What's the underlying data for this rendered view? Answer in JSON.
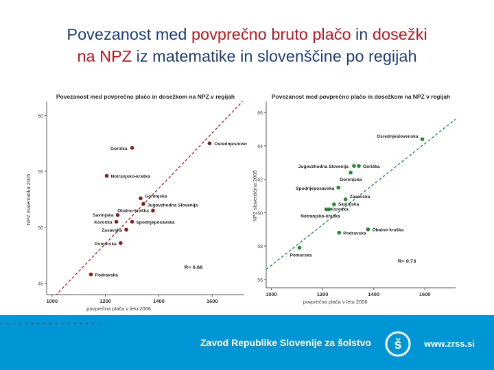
{
  "slide": {
    "title_line1_a": "Povezanost med ",
    "title_line1_b": "povprečno bruto  plačo",
    "title_line1_c": " in ",
    "title_line1_d": "dosežki",
    "title_line2_a": "na NPZ",
    "title_line2_b": " iz matematike in slovenščine po regijah"
  },
  "footer": {
    "dots": ". . . . . . . . . . . . . . . . .",
    "org": "Zavod Republike Slovenije za šolstvo",
    "url": "www.zrss.si",
    "logo": "zrss-logo-icon",
    "bg_color": "#0096d6"
  },
  "chart_data": [
    {
      "type": "scatter",
      "title": "Povezanost med povprečno plačo in dosežkom na NPZ v regijah",
      "xlabel": "povprečna plača v letu 2006",
      "ylabel": "NPZ matematika 2005",
      "xlim": [
        980,
        1720
      ],
      "ylim": [
        44,
        61
      ],
      "xticks": [
        1000,
        1200,
        1400,
        1600
      ],
      "yticks": [
        45,
        50,
        55,
        60
      ],
      "point_color": "#8b1a1a",
      "trend_color": "#c4161c",
      "trend": {
        "x": [
          1000,
          1720
        ],
        "y": [
          43.6,
          61.4
        ]
      },
      "annotation": "R= 0.68",
      "points": [
        {
          "label": "Osrednjeslovenska",
          "x": 1590,
          "y": 57.5
        },
        {
          "label": "Goriška",
          "x": 1300,
          "y": 57.1
        },
        {
          "label": "Notranjsko-kraška",
          "x": 1205,
          "y": 54.6
        },
        {
          "label": "Gorenjska",
          "x": 1332,
          "y": 52.6
        },
        {
          "label": "Jugovzhodna Slovenija",
          "x": 1342,
          "y": 52.1
        },
        {
          "label": "Obalno-kraška",
          "x": 1378,
          "y": 51.5
        },
        {
          "label": "Savinjska",
          "x": 1246,
          "y": 51.1
        },
        {
          "label": "Koroška",
          "x": 1241,
          "y": 50.5
        },
        {
          "label": "Spodnjeposavska",
          "x": 1300,
          "y": 50.5
        },
        {
          "label": "Zasavska",
          "x": 1278,
          "y": 49.8
        },
        {
          "label": "Pomurska",
          "x": 1257,
          "y": 48.6
        },
        {
          "label": "Podravska",
          "x": 1146,
          "y": 45.8
        }
      ]
    },
    {
      "type": "scatter",
      "title": "Povezanost med povprečno plačo in dosežkom na NPZ v regijah",
      "xlabel": "povprečna plača v letu 2006",
      "ylabel": "NPZ slovenščina 2005",
      "xlim": [
        980,
        1720
      ],
      "ylim": [
        55.5,
        66.5
      ],
      "xticks": [
        1000,
        1200,
        1400,
        1600
      ],
      "yticks": [
        56,
        58,
        60,
        62,
        64,
        66
      ],
      "point_color": "#1f8a32",
      "trend_color": "#1f8a32",
      "trend": {
        "x": [
          980,
          1720
        ],
        "y": [
          56.6,
          65.6
        ]
      },
      "annotation": "R= 0.73",
      "points": [
        {
          "label": "Osrednjeslovenska",
          "x": 1590,
          "y": 64.4
        },
        {
          "label": "Jugovzhodna Slovenija",
          "x": 1323,
          "y": 62.8
        },
        {
          "label": "Goriška",
          "x": 1342,
          "y": 62.8
        },
        {
          "label": "Gorenjska",
          "x": 1310,
          "y": 62.4
        },
        {
          "label": "Spodnjeposavska",
          "x": 1262,
          "y": 61.5
        },
        {
          "label": "Zasavska",
          "x": 1290,
          "y": 60.8
        },
        {
          "label": "Savinjska",
          "x": 1245,
          "y": 60.5
        },
        {
          "label": "Koroška",
          "x": 1225,
          "y": 60.2
        },
        {
          "label": "Notranjsko-kraška",
          "x": 1215,
          "y": 60.2
        },
        {
          "label": "Obalno-kraška",
          "x": 1378,
          "y": 59.0
        },
        {
          "label": "Podravska",
          "x": 1265,
          "y": 58.8
        },
        {
          "label": "Pomurska",
          "x": 1110,
          "y": 57.9
        }
      ]
    }
  ]
}
